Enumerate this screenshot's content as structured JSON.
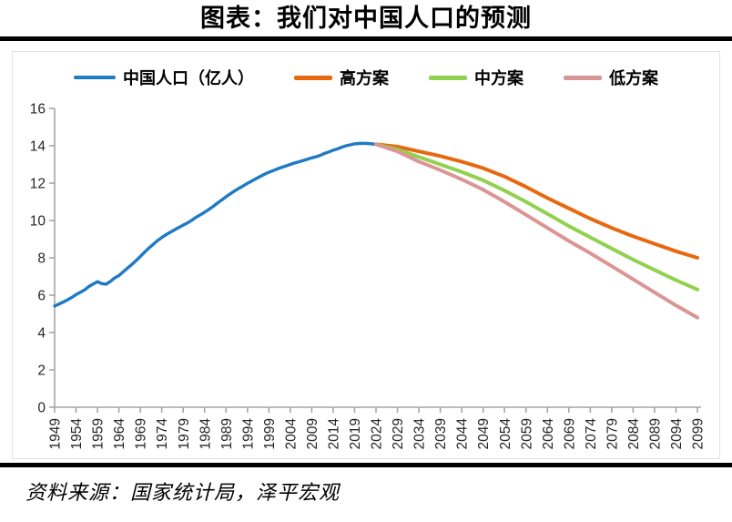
{
  "page": {
    "title": "图表：我们对中国人口的预测",
    "source": "资料来源：国家统计局，泽平宏观"
  },
  "chart_data": {
    "type": "line",
    "title": "图表：我们对中国人口的预测",
    "source": "资料来源：国家统计局，泽平宏观",
    "ylabel": "",
    "xlabel": "",
    "xlim": [
      1949,
      2099
    ],
    "ylim": [
      0,
      16
    ],
    "grid": false,
    "legend_position": "top",
    "axis_color": "#A6A6A6",
    "tick_label_color": "#262626",
    "y_ticks": [
      0,
      2,
      4,
      6,
      8,
      10,
      12,
      14,
      16
    ],
    "x_ticks": [
      1949,
      1954,
      1959,
      1964,
      1969,
      1974,
      1979,
      1984,
      1989,
      1994,
      1999,
      2004,
      2009,
      2014,
      2019,
      2024,
      2029,
      2034,
      2039,
      2044,
      2049,
      2054,
      2059,
      2064,
      2069,
      2074,
      2079,
      2084,
      2089,
      2094,
      2099
    ],
    "series": [
      {
        "name": "中国人口（亿人）",
        "color": "#1F7AC4",
        "width": 3.4,
        "x_start": 1949,
        "x_step": 1,
        "values": [
          5.42,
          5.52,
          5.63,
          5.75,
          5.88,
          6.03,
          6.15,
          6.28,
          6.47,
          6.6,
          6.72,
          6.62,
          6.59,
          6.73,
          6.92,
          7.05,
          7.25,
          7.45,
          7.64,
          7.85,
          8.07,
          8.3,
          8.52,
          8.72,
          8.92,
          9.09,
          9.24,
          9.37,
          9.5,
          9.63,
          9.75,
          9.87,
          10.01,
          10.17,
          10.3,
          10.44,
          10.59,
          10.75,
          10.93,
          11.1,
          11.27,
          11.43,
          11.58,
          11.72,
          11.85,
          11.99,
          12.11,
          12.24,
          12.36,
          12.48,
          12.58,
          12.67,
          12.76,
          12.85,
          12.92,
          13.0,
          13.08,
          13.14,
          13.21,
          13.28,
          13.35,
          13.41,
          13.49,
          13.59,
          13.67,
          13.76,
          13.83,
          13.92,
          14.0,
          14.05,
          14.1,
          14.12,
          14.13,
          14.12,
          14.1,
          14.08
        ]
      },
      {
        "name": "高方案",
        "color": "#E8680F",
        "width": 4,
        "x_start": 2024,
        "x_step": 5,
        "values": [
          14.08,
          13.95,
          13.7,
          13.45,
          13.15,
          12.8,
          12.35,
          11.8,
          11.2,
          10.65,
          10.1,
          9.6,
          9.15,
          8.75,
          8.35,
          8.0
        ]
      },
      {
        "name": "中方案",
        "color": "#92D050",
        "width": 4,
        "x_start": 2024,
        "x_step": 5,
        "values": [
          14.08,
          13.8,
          13.4,
          13.0,
          12.6,
          12.15,
          11.6,
          11.0,
          10.35,
          9.7,
          9.1,
          8.5,
          7.9,
          7.35,
          6.8,
          6.3
        ]
      },
      {
        "name": "低方案",
        "color": "#D99694",
        "width": 4,
        "x_start": 2024,
        "x_step": 5,
        "values": [
          14.08,
          13.7,
          13.15,
          12.7,
          12.2,
          11.65,
          11.0,
          10.3,
          9.6,
          8.9,
          8.25,
          7.55,
          6.85,
          6.15,
          5.45,
          4.8
        ]
      }
    ]
  }
}
